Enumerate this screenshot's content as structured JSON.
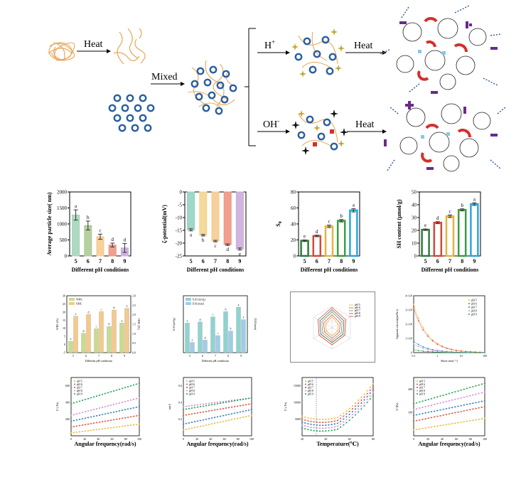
{
  "scheme": {
    "heat1": "Heat",
    "mixed": "Mixed",
    "h_plus": "H",
    "h_plus_sup": "+",
    "oh_minus": "OH",
    "oh_minus_sup": "-",
    "heat2": "Heat",
    "heat3": "Heat",
    "colors": {
      "fiber": "#e8a657",
      "ring": "#2a5fa0",
      "red": "#d4302c",
      "purple": "#6a2a8c",
      "star": "#c9a633"
    }
  },
  "chart_data": [
    {
      "type": "bar",
      "id": "particle-size",
      "ylabel": "Average particle size( nm)",
      "xlabel": "Different pH conditions",
      "categories": [
        "5",
        "6",
        "7",
        "8",
        "9"
      ],
      "values": [
        1280,
        950,
        600,
        340,
        250
      ],
      "errors": [
        160,
        140,
        80,
        60,
        140
      ],
      "letters": [
        "a",
        "b",
        "c",
        "d",
        "d"
      ],
      "yticks": [
        "0",
        "500",
        "1000",
        "1500",
        "2000"
      ],
      "ylim": [
        0,
        2000
      ],
      "colors": [
        "#9fd3b6",
        "#a9c98e",
        "#f5c98a",
        "#ef8f7d",
        "#c8a9d8"
      ]
    },
    {
      "type": "bar",
      "id": "zeta-potential",
      "ylabel": "ζ-potential(mV)",
      "xlabel": "Different pH conditions",
      "categories": [
        "5",
        "6",
        "7",
        "8",
        "9"
      ],
      "values": [
        -14.8,
        -16.9,
        -19.2,
        -20.6,
        -22.3
      ],
      "errors": [
        0.4,
        0.3,
        0.3,
        0.3,
        0.4
      ],
      "letters": [
        "a",
        "b",
        "c",
        "d",
        "e"
      ],
      "yticks": [
        "0",
        "-5",
        "-10",
        "-15",
        "-20",
        "-25"
      ],
      "ylim": [
        -25,
        0
      ],
      "colors": [
        "#8fd0c0",
        "#f2d28a",
        "#f5c98a",
        "#ef8f7d",
        "#c8a9d8"
      ]
    },
    {
      "type": "bar",
      "id": "s0",
      "ylabel": "S",
      "ylabel_sub": "0",
      "xlabel": "Different pH conditions",
      "categories": [
        "5",
        "6",
        "7",
        "8",
        "9"
      ],
      "values": [
        19,
        25,
        37,
        44,
        57
      ],
      "errors": [
        1,
        1,
        1.5,
        1.5,
        2
      ],
      "letters": [
        "e",
        "d",
        "c",
        "b",
        "a"
      ],
      "yticks": [
        "0",
        "20",
        "40",
        "60",
        "80"
      ],
      "ylim": [
        0,
        80
      ],
      "colors": [
        "#2e7a3e",
        "#d6473b",
        "#e1b443",
        "#3e9b44",
        "#2aa6d8"
      ]
    },
    {
      "type": "bar",
      "id": "sh-content",
      "ylabel": "SH content (μmol/g)",
      "xlabel": "Different pH conditions",
      "categories": [
        "5",
        "6",
        "7",
        "8",
        "9"
      ],
      "values": [
        20.5,
        26,
        31,
        36,
        40.5
      ],
      "errors": [
        0.6,
        0.8,
        1,
        0.8,
        1
      ],
      "letters": [
        "e",
        "d",
        "c",
        "b",
        "a"
      ],
      "yticks": [
        "0",
        "10",
        "20",
        "30",
        "40",
        "50"
      ],
      "ylim": [
        0,
        50
      ],
      "colors": [
        "#2e7a3e",
        "#d6473b",
        "#e1b443",
        "#3e9b44",
        "#2aa6d8"
      ]
    },
    {
      "type": "bar",
      "id": "whc-ohc",
      "ylabel": "WHC (%)",
      "y2label": "OHC (%)",
      "xlabel": "Different pH conditions",
      "legend": [
        "WHC",
        "OHC"
      ],
      "categories": [
        "5",
        "6",
        "7",
        "8",
        "9"
      ],
      "series": [
        {
          "name": "WHC",
          "values": [
            20,
            34,
            42,
            46,
            52
          ]
        },
        {
          "name": "OHC",
          "values": [
            64,
            67,
            72,
            75,
            78
          ]
        }
      ],
      "yticks": [
        "-5",
        "0",
        "5",
        "10",
        "15",
        "20",
        "25",
        "30"
      ],
      "y2ticks": [
        "0.0",
        "0.5",
        "1.0",
        "1.5",
        "2.0",
        "2.5",
        "3.0"
      ],
      "colors": [
        "#c9dc8e",
        "#f5c98a"
      ]
    },
    {
      "type": "bar",
      "id": "ea-es",
      "ylabel": "EAI (m²/g)",
      "y2label": "ESI (min)",
      "xlabel": "Different pH conditions",
      "legend": [
        "EAI (m²/g)",
        "ESI (min)"
      ],
      "categories": [
        "5",
        "6",
        "7",
        "8",
        "9"
      ],
      "series": [
        {
          "name": "EAI",
          "values": [
            52,
            54,
            63,
            72,
            80
          ]
        },
        {
          "name": "ESI",
          "values": [
            18,
            22,
            30,
            38,
            58
          ]
        }
      ],
      "colors": [
        "#8fd3cf",
        "#9fcde8"
      ]
    },
    {
      "type": "radar",
      "id": "radar",
      "legend": [
        "pH 5",
        "pH 6",
        "pH 7",
        "pH 8",
        "pH 9"
      ]
    },
    {
      "type": "line",
      "id": "viscosity",
      "ylabel": "Apparent viscosity(mPa.s)",
      "xlabel": "Shear rate(s⁻¹)",
      "yticks": [
        "0",
        "1×10⁴",
        "2×10⁴",
        "3×10⁴",
        "4×10⁴"
      ],
      "xticks": [
        "0.1",
        "1",
        "10",
        "100"
      ],
      "legend": [
        "pH 5",
        "pH 6",
        "pH 7",
        "pH 8",
        "pH 9"
      ]
    },
    {
      "type": "scatter",
      "id": "g-prime",
      "ylabel": "G' ( Pa)",
      "xlabel": "Angular frequency(rad/s)",
      "xticks": [
        "0",
        "20",
        "40",
        "60",
        "80",
        "100"
      ],
      "yticks": [
        "200",
        "400",
        "600"
      ],
      "legend": [
        "pH 5",
        "pH 6",
        "pH 7",
        "pH 8",
        "pH 9"
      ]
    },
    {
      "type": "scatter",
      "id": "tan-delta",
      "ylabel": "tan δ",
      "xlabel": "Angular frequency(rad/s)",
      "xticks": [
        "0",
        "20",
        "40",
        "60",
        "80",
        "100"
      ],
      "yticks": [
        "0.2",
        "0.4",
        "0.6"
      ],
      "legend": [
        "pH 5",
        "pH 6",
        "pH 7",
        "pH 8",
        "pH 9"
      ]
    },
    {
      "type": "scatter",
      "id": "temp-sweep",
      "ylabel": "G' ( Pa)",
      "xlabel": "Temperature(℃)",
      "xticks": [
        "20",
        "40",
        "60",
        "80"
      ],
      "yticks": [
        "5000",
        "10000",
        "15000"
      ],
      "legend": [
        "pH 5",
        "pH 6",
        "pH 7",
        "pH 8",
        "pH 9"
      ]
    },
    {
      "type": "scatter",
      "id": "g-double-prime",
      "ylabel": "G''(Pa)",
      "xlabel": "Angular frequency(rad/s)",
      "xticks": [
        "0",
        "20",
        "40",
        "60",
        "80",
        "100"
      ],
      "yticks": [
        "100",
        "200"
      ],
      "legend": [
        "pH 5",
        "pH 6",
        "pH 7",
        "pH 8",
        "pH 9"
      ]
    }
  ]
}
